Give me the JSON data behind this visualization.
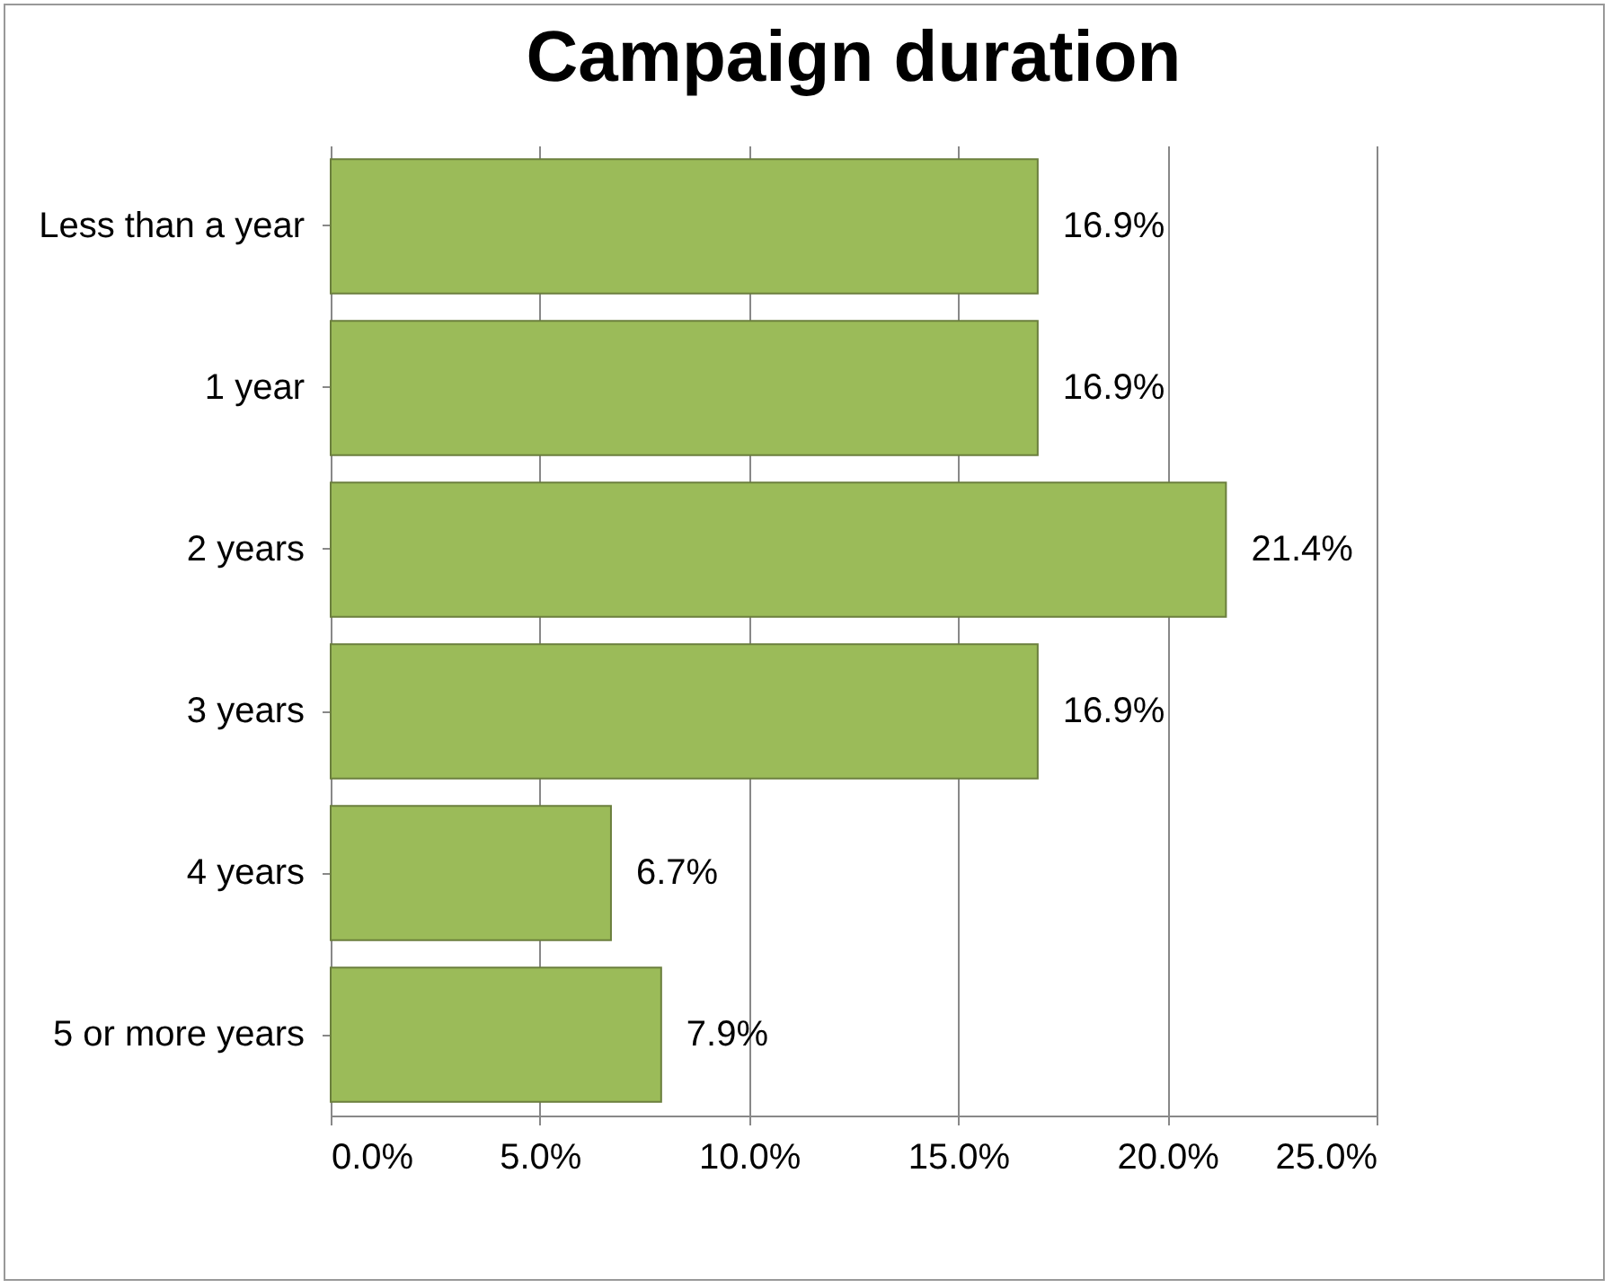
{
  "chart_data": {
    "type": "bar",
    "orientation": "horizontal",
    "title": "Campaign duration",
    "categories": [
      "Less than a year",
      "1 year",
      "2 years",
      "3 years",
      "4 years",
      "5 or more years"
    ],
    "values": [
      16.9,
      16.9,
      21.4,
      16.9,
      6.7,
      7.9
    ],
    "value_labels": [
      "16.9%",
      "16.9%",
      "21.4%",
      "16.9%",
      "6.7%",
      "7.9%"
    ],
    "color": "#9bbb59",
    "xlim": [
      0,
      25
    ],
    "xticks": [
      {
        "value": 0,
        "label": "0.0%"
      },
      {
        "value": 5,
        "label": "5.0%"
      },
      {
        "value": 10,
        "label": "10.0%"
      },
      {
        "value": 15,
        "label": "15.0%"
      },
      {
        "value": 20,
        "label": "20.0%"
      },
      {
        "value": 25,
        "label": "25.0%"
      }
    ],
    "grid": "x"
  }
}
